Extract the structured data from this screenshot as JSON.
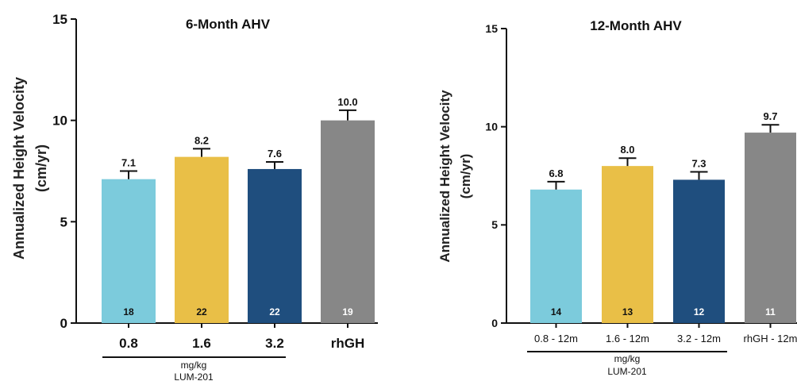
{
  "chart_data": [
    {
      "type": "bar",
      "title": "6-Month AHV",
      "ylabel": "Annualized Height Velocity\n(cm/yr)",
      "ylim": [
        0,
        15
      ],
      "yticks": [
        "0",
        "5",
        "10",
        "15"
      ],
      "categories": [
        "0.8",
        "1.6",
        "3.2",
        "rhGH"
      ],
      "values": [
        7.1,
        8.2,
        7.6,
        10.0
      ],
      "value_labels": [
        "7.1",
        "8.2",
        "7.6",
        "10.0"
      ],
      "error_upper": [
        7.5,
        8.6,
        7.95,
        10.5
      ],
      "n_labels": [
        "18",
        "22",
        "22",
        "19"
      ],
      "colors": [
        "#7ccbdc",
        "#e9bf47",
        "#1f4e7e",
        "#878787"
      ],
      "group_label_line1": "mg/kg",
      "group_label_line2": "LUM-201",
      "grid": false
    },
    {
      "type": "bar",
      "title": "12-Month AHV",
      "ylabel": "Annualized Height Velocity\n(cm/yr)",
      "ylim": [
        0,
        15
      ],
      "yticks": [
        "0",
        "5",
        "10",
        "15"
      ],
      "categories": [
        "0.8 - 12m",
        "1.6 - 12m",
        "3.2 - 12m",
        "rhGH - 12m"
      ],
      "values": [
        6.8,
        8.0,
        7.3,
        9.7
      ],
      "value_labels": [
        "6.8",
        "8.0",
        "7.3",
        "9.7"
      ],
      "error_upper": [
        7.2,
        8.4,
        7.7,
        10.1
      ],
      "n_labels": [
        "14",
        "13",
        "12",
        "11"
      ],
      "colors": [
        "#7ccbdc",
        "#e9bf47",
        "#1f4e7e",
        "#878787"
      ],
      "group_label_line1": "mg/kg",
      "group_label_line2": "LUM-201",
      "grid": false
    }
  ]
}
